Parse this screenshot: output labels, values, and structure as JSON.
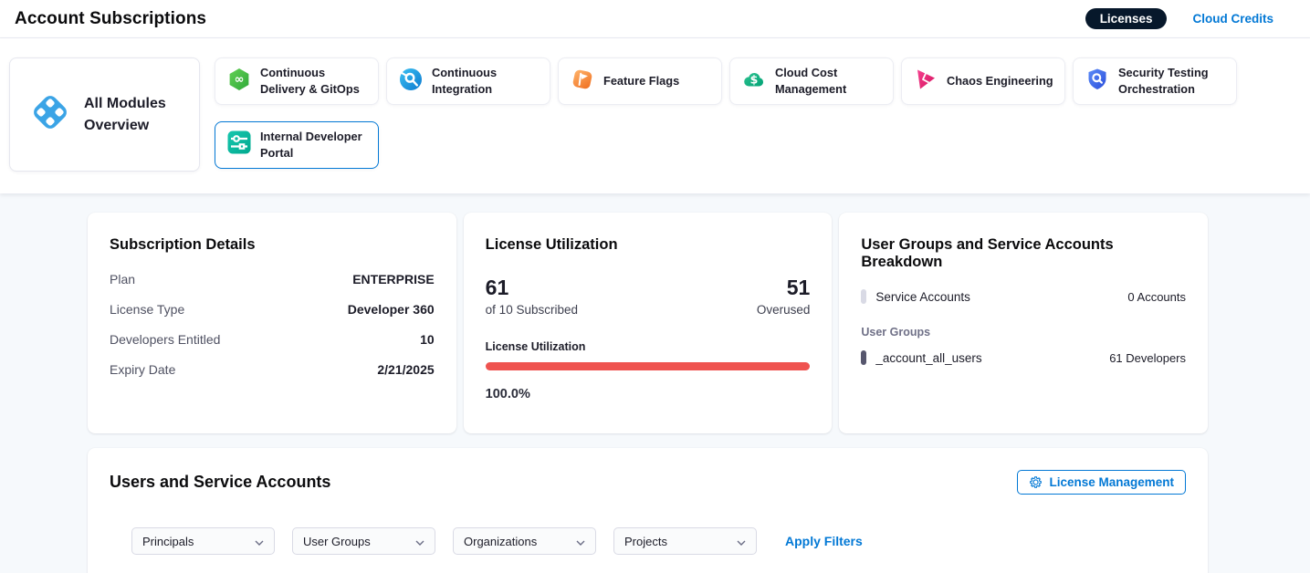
{
  "header": {
    "title": "Account Subscriptions",
    "tabs": {
      "licenses": "Licenses",
      "cloud_credits": "Cloud Credits"
    }
  },
  "modules": {
    "overview_label": "All Modules Overview",
    "cards": [
      {
        "label": "Continuous Delivery & GitOps",
        "icon": "cd-gitops-module-icon",
        "selected": false
      },
      {
        "label": "Continuous Integration",
        "icon": "ci-module-icon",
        "selected": false
      },
      {
        "label": "Feature Flags",
        "icon": "feature-flags-module-icon",
        "selected": false
      },
      {
        "label": "Cloud Cost Management",
        "icon": "cloud-cost-module-icon",
        "selected": false
      },
      {
        "label": "Chaos Engineering",
        "icon": "chaos-module-icon",
        "selected": false
      },
      {
        "label": "Security Testing Orchestration",
        "icon": "sto-module-icon",
        "selected": false
      },
      {
        "label": "Internal Developer Portal",
        "icon": "idp-module-icon",
        "selected": true
      }
    ]
  },
  "subscription_details": {
    "title": "Subscription Details",
    "rows": [
      {
        "label": "Plan",
        "value": "ENTERPRISE"
      },
      {
        "label": "License Type",
        "value": "Developer 360"
      },
      {
        "label": "Developers Entitled",
        "value": "10"
      },
      {
        "label": "Expiry Date",
        "value": "2/21/2025"
      }
    ]
  },
  "license_utilization": {
    "title": "License Utilization",
    "used_count": "61",
    "used_caption": "of 10 Subscribed",
    "overused_count": "51",
    "overused_caption": "Overused",
    "bar_label": "License Utilization",
    "percent_value": 100,
    "percent_label": "100.0%"
  },
  "breakdown": {
    "title": "User Groups and Service Accounts Breakdown",
    "service_accounts": {
      "label": "Service Accounts",
      "value": "0 Accounts"
    },
    "user_groups_subhead": "User Groups",
    "groups": [
      {
        "name": "_account_all_users",
        "value": "61 Developers"
      }
    ]
  },
  "users_section": {
    "title": "Users and Service Accounts",
    "license_management_button": "License Management",
    "filters": [
      "Principals",
      "User Groups",
      "Organizations",
      "Projects"
    ],
    "apply_filters_label": "Apply Filters"
  },
  "colors": {
    "accent": "#0278d5",
    "licenses_pill_bg": "#07182b",
    "utilization_bar": "#ef5350",
    "service_accounts_marker": "#d9dae5",
    "user_group_marker": "#57576e"
  }
}
